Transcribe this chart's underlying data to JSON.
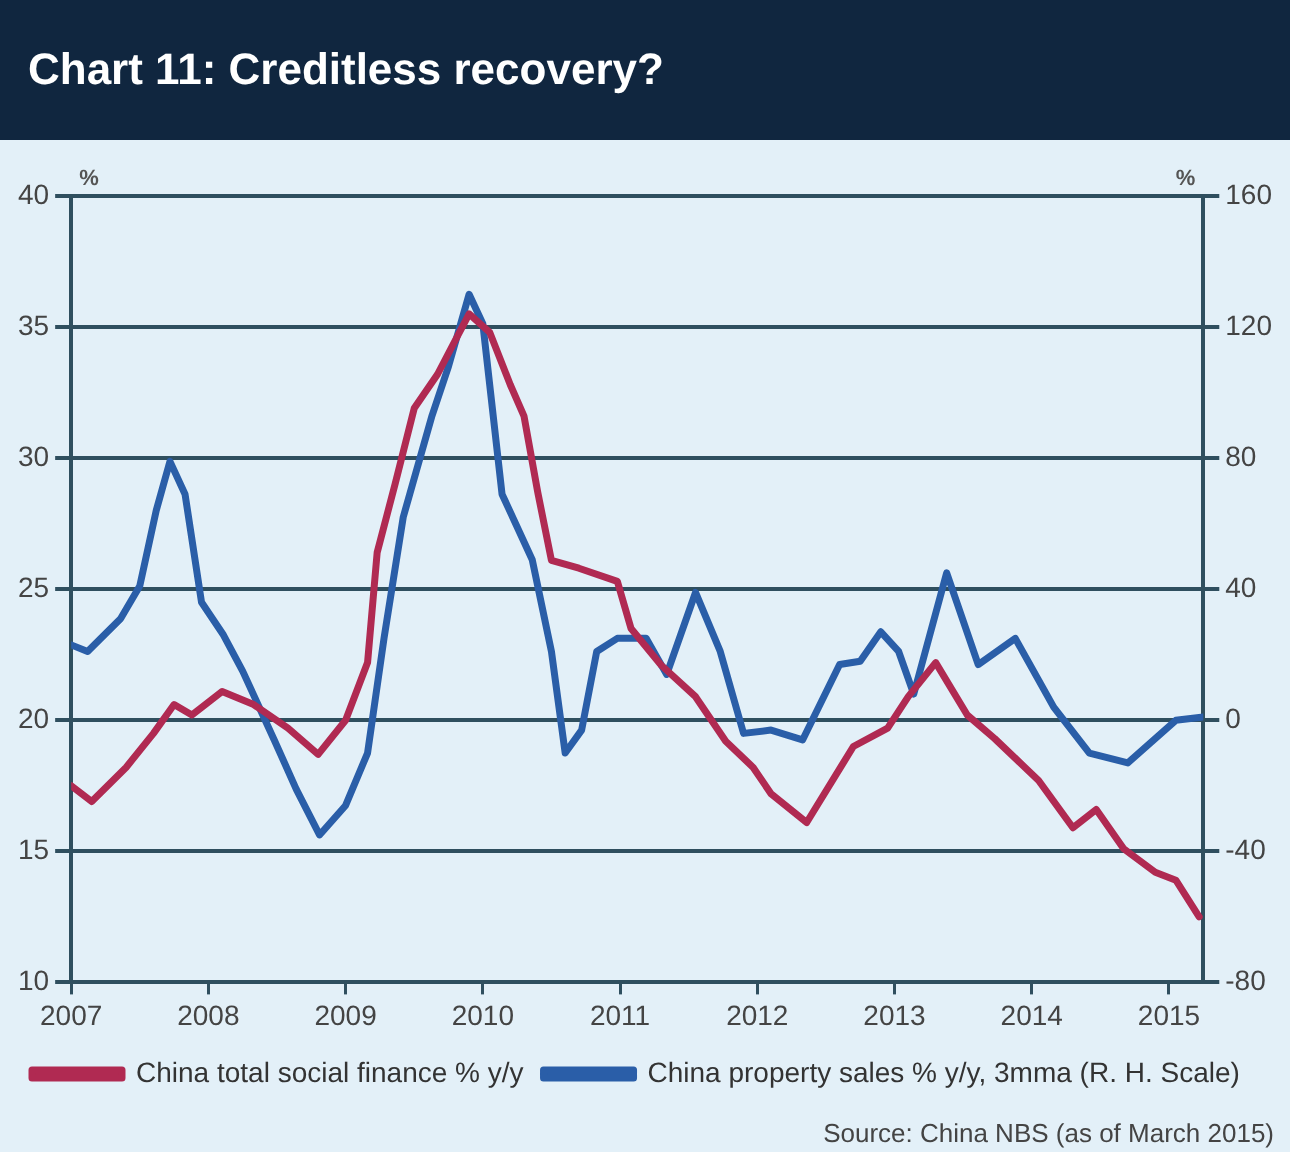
{
  "chart_data": {
    "type": "line",
    "title": "Chart 11: Creditless recovery?",
    "ylabel": "%",
    "y2label": "%",
    "annotations": [
      "Source: China NBS (as of March 2015)"
    ],
    "xlim": [
      2007,
      2015.25
    ],
    "xticks": [
      2007,
      2008,
      2009,
      2010,
      2011,
      2012,
      2013,
      2014,
      2015
    ],
    "ylim": [
      10,
      40
    ],
    "yticks": [
      10,
      15,
      20,
      25,
      30,
      35,
      40
    ],
    "y2lim": [
      -80,
      160
    ],
    "y2ticks": [
      -80,
      -40,
      0,
      40,
      80,
      120,
      160
    ],
    "grid": "y",
    "legend": "bottom",
    "marker": "none",
    "line_style": "solid",
    "series": [
      {
        "name": "China total social finance % y/y",
        "color": "#b02a52",
        "x": [
          2007.0,
          2007.15,
          2007.4,
          2007.6,
          2007.75,
          2007.88,
          2008.1,
          2008.33,
          2008.58,
          2008.8,
          2009.0,
          2009.16,
          2009.23,
          2009.36,
          2009.5,
          2009.67,
          2009.9,
          2010.05,
          2010.2,
          2010.3,
          2010.4,
          2010.5,
          2010.7,
          2010.98,
          2011.08,
          2011.3,
          2011.55,
          2011.77,
          2011.97,
          2012.1,
          2012.36,
          2012.7,
          2012.95,
          2013.1,
          2013.3,
          2013.53,
          2013.73,
          2014.05,
          2014.3,
          2014.47,
          2014.67,
          2014.9,
          2015.05,
          2015.22
        ],
        "values": [
          17.5,
          16.9,
          18.2,
          19.5,
          20.6,
          20.2,
          21.1,
          20.6,
          19.7,
          18.7,
          20.0,
          22.2,
          26.4,
          29.0,
          31.9,
          33.2,
          35.5,
          34.8,
          32.8,
          31.6,
          28.7,
          26.1,
          25.8,
          25.3,
          23.5,
          22.1,
          20.9,
          19.2,
          18.2,
          17.2,
          16.1,
          19.0,
          19.7,
          20.9,
          22.2,
          20.2,
          19.3,
          17.7,
          15.9,
          16.6,
          15.1,
          14.2,
          13.9,
          12.5
        ]
      },
      {
        "name": "China property sales % y/y, 3mma (R. H. Scale)",
        "color": "#2a5ea8",
        "axis": "y2",
        "x": [
          2007.0,
          2007.12,
          2007.36,
          2007.5,
          2007.62,
          2007.72,
          2007.83,
          2007.95,
          2008.11,
          2008.25,
          2008.48,
          2008.64,
          2008.81,
          2009.0,
          2009.16,
          2009.28,
          2009.42,
          2009.63,
          2009.75,
          2009.9,
          2010.0,
          2010.14,
          2010.36,
          2010.5,
          2010.6,
          2010.72,
          2010.83,
          2010.98,
          2011.19,
          2011.34,
          2011.55,
          2011.73,
          2011.9,
          2012.1,
          2012.33,
          2012.6,
          2012.75,
          2012.9,
          2013.03,
          2013.14,
          2013.38,
          2013.61,
          2013.88,
          2014.16,
          2014.42,
          2014.7,
          2015.05,
          2015.25
        ],
        "values": [
          23,
          21,
          31,
          41,
          64,
          79,
          69,
          36,
          26,
          15,
          -6,
          -21,
          -35,
          -26,
          -10,
          25,
          62,
          93,
          108,
          130,
          121,
          69,
          49,
          21,
          -10,
          -3,
          21,
          25,
          25,
          14,
          39,
          21,
          -4,
          -3,
          -6,
          17,
          18,
          27,
          21,
          8,
          45,
          17,
          25,
          4,
          -10,
          -13,
          0,
          1
        ]
      }
    ]
  }
}
